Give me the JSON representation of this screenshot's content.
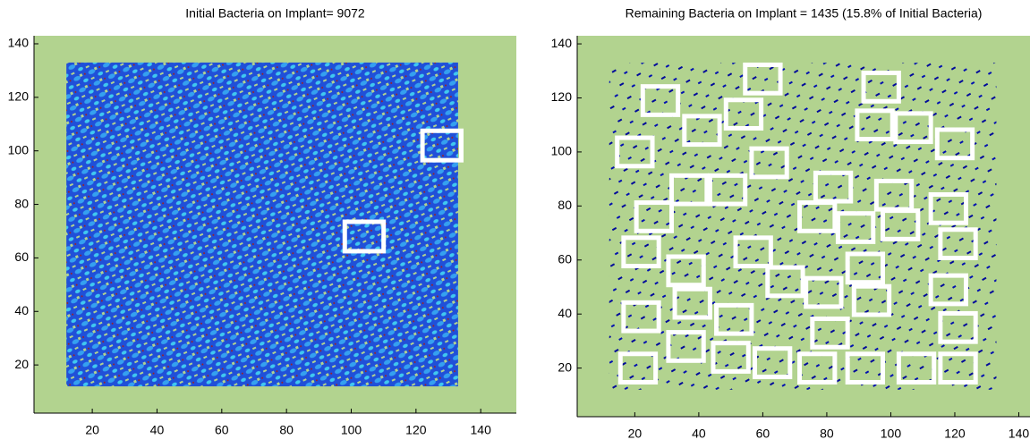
{
  "chart_data": [
    {
      "type": "image",
      "title": "Initial Bacteria on Implant= 9072",
      "xlim": [
        2,
        151
      ],
      "ylim": [
        2,
        143
      ],
      "xticks": [
        20,
        40,
        60,
        80,
        100,
        120,
        140
      ],
      "yticks": [
        20,
        40,
        60,
        80,
        100,
        120,
        140
      ],
      "background": "#b2d38f",
      "box_color": "#ffffff",
      "box_size": [
        12,
        11
      ],
      "boxes": [
        [
          128,
          102
        ],
        [
          104,
          68
        ]
      ]
    },
    {
      "type": "image",
      "title": "Remaining Bacteria on Implant = 1435 (15.8% of Initial Bacteria)",
      "xlim": [
        2,
        143.5
      ],
      "ylim": [
        2,
        143
      ],
      "xticks": [
        20,
        40,
        60,
        80,
        100,
        120,
        140
      ],
      "yticks": [
        20,
        40,
        60,
        80,
        100,
        120,
        140
      ],
      "background": "#b2d38f",
      "box_color": "#ffffff",
      "box_size": [
        11,
        10.5
      ],
      "boxes": [
        [
          28,
          119
        ],
        [
          60,
          127
        ],
        [
          54,
          114
        ],
        [
          41,
          108
        ],
        [
          97,
          124
        ],
        [
          95,
          110
        ],
        [
          107,
          109
        ],
        [
          120,
          103
        ],
        [
          20,
          100
        ],
        [
          62,
          96
        ],
        [
          82,
          87
        ],
        [
          37,
          86
        ],
        [
          49,
          86
        ],
        [
          101,
          84
        ],
        [
          118,
          79
        ],
        [
          26,
          76
        ],
        [
          77,
          76
        ],
        [
          89,
          72
        ],
        [
          103,
          73
        ],
        [
          121,
          66
        ],
        [
          22,
          63
        ],
        [
          57,
          63
        ],
        [
          36,
          56
        ],
        [
          92,
          57
        ],
        [
          67,
          52
        ],
        [
          118,
          49
        ],
        [
          79,
          48
        ],
        [
          94,
          45
        ],
        [
          38,
          44
        ],
        [
          22,
          39
        ],
        [
          51,
          38
        ],
        [
          121,
          35
        ],
        [
          81,
          33
        ],
        [
          36,
          28
        ],
        [
          50,
          24
        ],
        [
          21,
          20
        ],
        [
          63,
          22
        ],
        [
          77,
          20
        ],
        [
          92,
          20
        ],
        [
          108,
          20
        ],
        [
          121,
          20
        ]
      ]
    }
  ]
}
